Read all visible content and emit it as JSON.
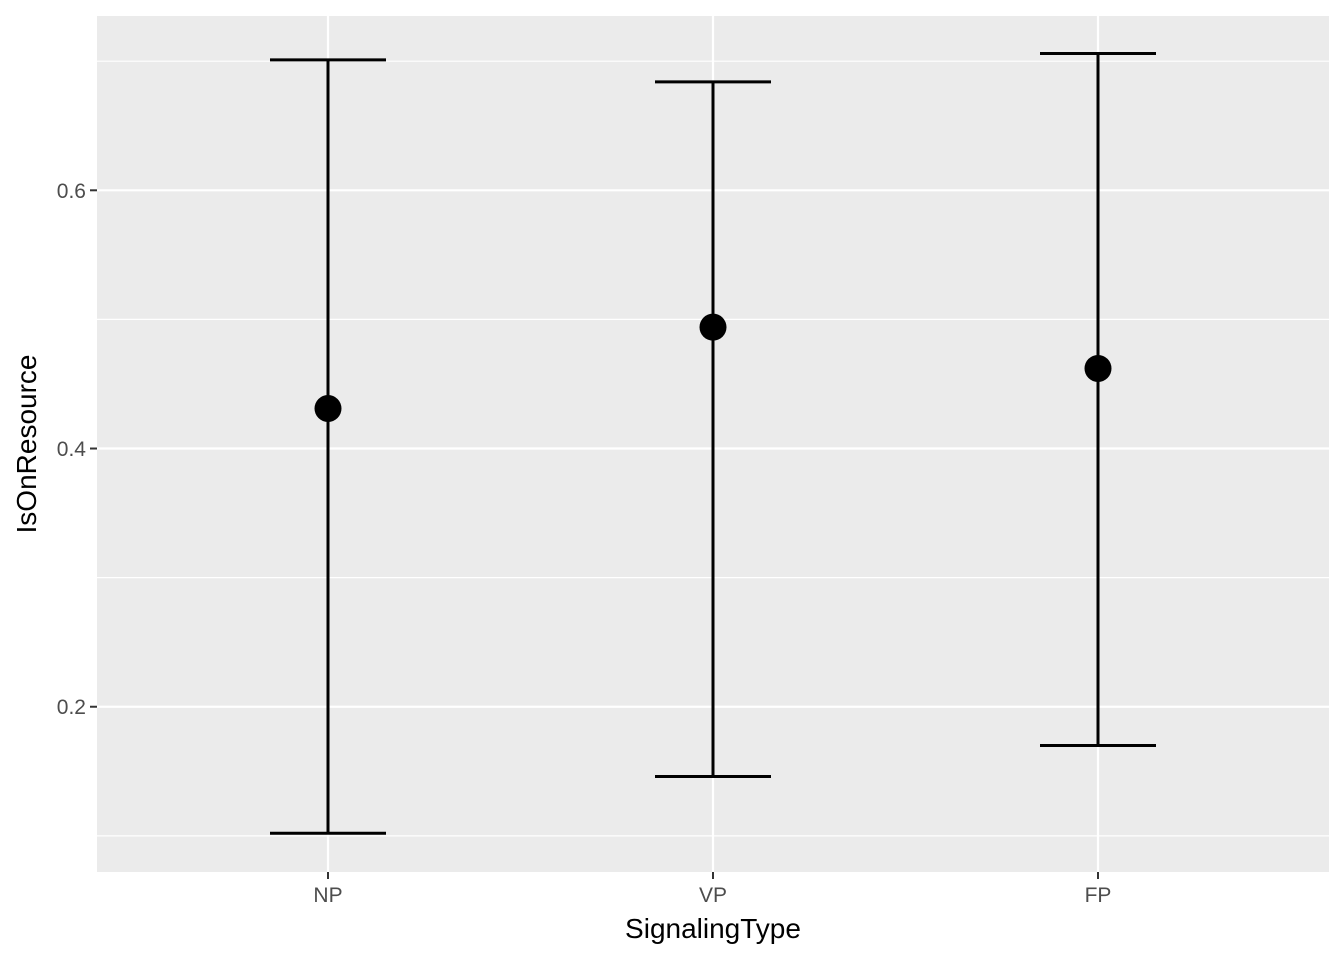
{
  "figure": {
    "background": "#FFFFFF",
    "panel_background": "#EBEBEB",
    "grid_color": "#FFFFFF",
    "tick_mark_color": "#333333",
    "tick_label_color": "#4D4D4D",
    "axis_title_color": "#000000",
    "geom_color": "#000000"
  },
  "chart_data": {
    "type": "scatter",
    "subtype": "point-with-error-bars",
    "title": "",
    "xlabel": "SignalingType",
    "ylabel": "IsOnResource",
    "categories": [
      "NP",
      "VP",
      "FP"
    ],
    "points": [
      {
        "category": "NP",
        "value": 0.431,
        "lower": 0.102,
        "upper": 0.701
      },
      {
        "category": "VP",
        "value": 0.494,
        "lower": 0.146,
        "upper": 0.684
      },
      {
        "category": "FP",
        "value": 0.462,
        "lower": 0.17,
        "upper": 0.706
      }
    ],
    "ylim": [
      0.072,
      0.735
    ],
    "yticks_major": [
      0.2,
      0.4,
      0.6
    ],
    "ytick_labels": [
      "0.2",
      "0.4",
      "0.6"
    ],
    "yticks_minor": [
      0.1,
      0.3,
      0.5,
      0.7
    ],
    "grid": "on",
    "legend": "none"
  }
}
